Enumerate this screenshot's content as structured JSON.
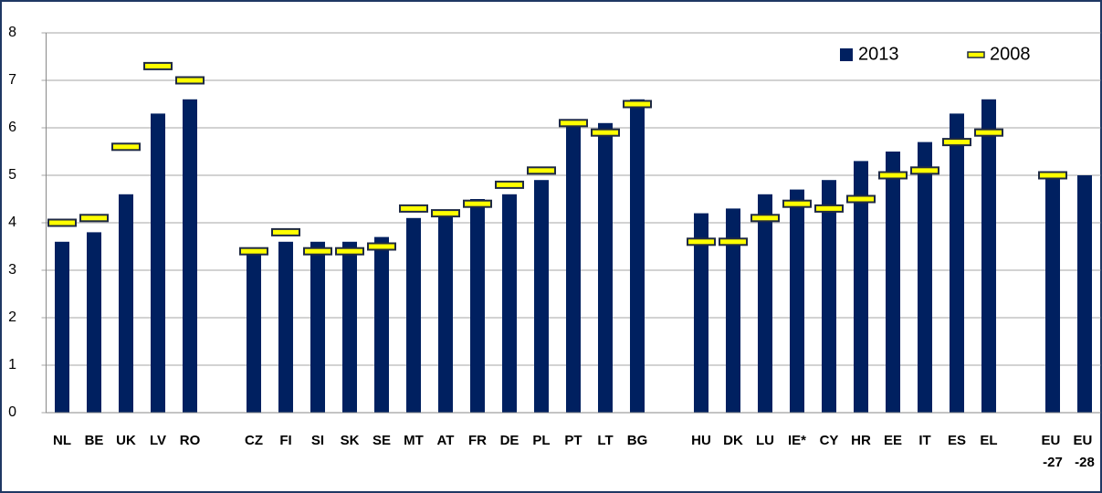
{
  "chart_data": {
    "type": "bar",
    "categories": [
      "NL",
      "BE",
      "UK",
      "LV",
      "RO",
      null,
      "CZ",
      "FI",
      "SI",
      "SK",
      "SE",
      "MT",
      "AT",
      "FR",
      "DE",
      "PL",
      "PT",
      "LT",
      "BG",
      null,
      "HU",
      "DK",
      "LU",
      "IE*",
      "CY",
      "HR",
      "EE",
      "IT",
      "ES",
      "EL",
      null,
      "EU -27",
      "EU -28"
    ],
    "series": [
      {
        "name": "2013",
        "color": "#002060",
        "style": "bar",
        "values": [
          3.6,
          3.8,
          4.6,
          6.3,
          6.6,
          null,
          3.4,
          3.6,
          3.6,
          3.6,
          3.7,
          4.1,
          4.2,
          4.5,
          4.6,
          4.9,
          6.1,
          6.1,
          6.6,
          null,
          4.2,
          4.3,
          4.6,
          4.7,
          4.9,
          5.3,
          5.5,
          5.7,
          6.3,
          6.6,
          null,
          5.0,
          5.0
        ]
      },
      {
        "name": "2008",
        "color": "#ffff00",
        "style": "marker",
        "values": [
          4.0,
          4.1,
          5.6,
          7.3,
          7.0,
          null,
          3.4,
          3.8,
          3.4,
          3.4,
          3.5,
          4.3,
          4.2,
          4.4,
          4.8,
          5.1,
          6.1,
          5.9,
          6.5,
          null,
          3.6,
          3.6,
          4.1,
          4.4,
          4.3,
          4.5,
          5.0,
          5.1,
          5.7,
          5.9,
          null,
          5.0,
          null
        ]
      }
    ],
    "ylim": [
      0,
      8
    ],
    "yticks": [
      0,
      1,
      2,
      3,
      4,
      5,
      6,
      7,
      8
    ],
    "grid": true,
    "legend": "top-right"
  }
}
